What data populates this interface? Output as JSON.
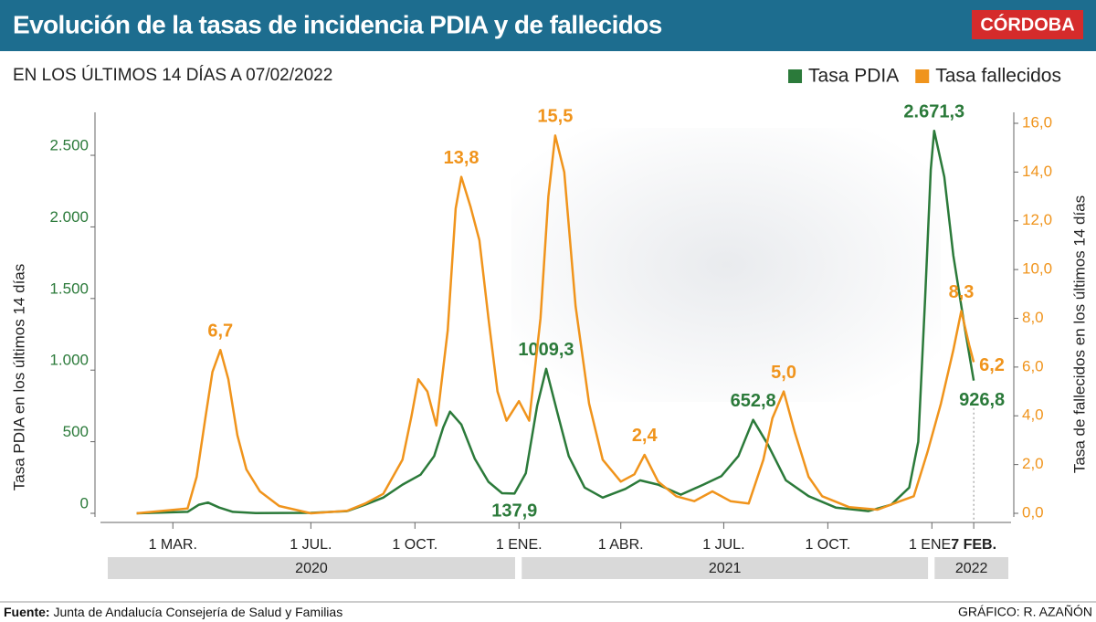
{
  "chart_data": {
    "type": "line",
    "title": "Evolución de la tasas de incidencia PDIA y de fallecidos",
    "logo": "CÓRDOBA",
    "subtitle": "EN LOS ÚLTIMOS 14 DÍAS A 07/02/2022",
    "ylabel": "Tasa PDIA en los últimos 14 días",
    "y2label": "Tasa de fallecidos en los últimos 14 días",
    "xlim": [
      "2019-12-28",
      "2022-03-12"
    ],
    "ylim": [
      0,
      2800
    ],
    "y2lim": [
      0,
      16.45
    ],
    "yticks": [
      0,
      500,
      {
        "value": 1000,
        "label": "1.000"
      },
      {
        "value": 1500,
        "label": "1.500"
      },
      {
        "value": 2000,
        "label": "2.000"
      },
      {
        "value": 2500,
        "label": "2.500"
      }
    ],
    "y2ticks": [
      {
        "value": 0,
        "label": "0,0"
      },
      {
        "value": 2,
        "label": "2,0"
      },
      {
        "value": 4,
        "label": "4,0"
      },
      {
        "value": 6,
        "label": "6,0"
      },
      {
        "value": 8,
        "label": "8,0"
      },
      {
        "value": 10,
        "label": "10,0"
      },
      {
        "value": 12,
        "label": "12,0"
      },
      {
        "value": 14,
        "label": "14,0"
      },
      {
        "value": 16,
        "label": "16,0"
      }
    ],
    "xticks": [
      {
        "value": "2020-03-01",
        "label": "1 MAR."
      },
      {
        "value": "2020-07-01",
        "label": "1 JUL."
      },
      {
        "value": "2020-10-01",
        "label": "1 OCT."
      },
      {
        "value": "2021-01-01",
        "label": "1 ENE."
      },
      {
        "value": "2021-04-01",
        "label": "1 ABR."
      },
      {
        "value": "2021-07-01",
        "label": "1 JUL."
      },
      {
        "value": "2021-10-01",
        "label": "1 OCT."
      },
      {
        "value": "2022-01-01",
        "label": "1 ENE."
      },
      {
        "value": "2022-02-07",
        "label": "7 FEB."
      }
    ],
    "year_bands": [
      "2020",
      "2021",
      "2022"
    ],
    "grid": false,
    "legend": "top-right",
    "series": [
      {
        "name": "Tasa PDIA",
        "color": "#2b7a3a",
        "axis": "y",
        "x": [
          "2020-01-29",
          "2020-03-14",
          "2020-03-24",
          "2020-04-01",
          "2020-04-11",
          "2020-04-23",
          "2020-05-13",
          "2020-07-01",
          "2020-08-02",
          "2020-08-18",
          "2020-09-03",
          "2020-09-20",
          "2020-10-06",
          "2020-10-18",
          "2020-10-26",
          "2020-11-01",
          "2020-11-11",
          "2020-11-23",
          "2020-12-05",
          "2020-12-17",
          "2020-12-28",
          "2021-01-07",
          "2021-01-17",
          "2021-01-25",
          "2021-02-04",
          "2021-02-14",
          "2021-02-28",
          "2021-03-16",
          "2021-04-05",
          "2021-04-18",
          "2021-05-04",
          "2021-05-24",
          "2021-06-13",
          "2021-06-29",
          "2021-07-14",
          "2021-07-27",
          "2021-08-09",
          "2021-08-25",
          "2021-09-14",
          "2021-10-08",
          "2021-11-06",
          "2021-11-26",
          "2021-12-12",
          "2021-12-20",
          "2021-12-26",
          "2021-12-31",
          "2022-01-03",
          "2022-01-12",
          "2022-01-20",
          "2022-01-30",
          "2022-02-07"
        ],
        "values": [
          0,
          10,
          60,
          75,
          40,
          10,
          2,
          3,
          15,
          60,
          110,
          200,
          270,
          400,
          600,
          710,
          620,
          380,
          220,
          140,
          137.9,
          280,
          750,
          1009.3,
          700,
          400,
          180,
          110,
          170,
          230,
          200,
          130,
          200,
          260,
          400,
          652.8,
          480,
          230,
          120,
          40,
          15,
          60,
          180,
          500,
          1500,
          2400,
          2671.3,
          2350,
          1800,
          1300,
          926.8
        ],
        "value_labels": [
          null,
          null,
          null,
          null,
          null,
          null,
          null,
          null,
          null,
          null,
          null,
          null,
          null,
          null,
          null,
          null,
          null,
          null,
          null,
          null,
          "137,9",
          null,
          null,
          "1009,3",
          null,
          null,
          null,
          null,
          null,
          null,
          null,
          null,
          null,
          null,
          null,
          "652,8",
          null,
          null,
          null,
          null,
          null,
          null,
          null,
          null,
          null,
          null,
          "2.671,3",
          null,
          null,
          null,
          "926,8"
        ]
      },
      {
        "name": "Tasa fallecidos",
        "color": "#f0941c",
        "axis": "y2",
        "x": [
          "2020-01-29",
          "2020-03-14",
          "2020-03-22",
          "2020-03-30",
          "2020-04-05",
          "2020-04-12",
          "2020-04-19",
          "2020-04-27",
          "2020-05-05",
          "2020-05-17",
          "2020-06-03",
          "2020-07-01",
          "2020-08-02",
          "2020-08-18",
          "2020-09-03",
          "2020-09-20",
          "2020-09-28",
          "2020-10-04",
          "2020-10-12",
          "2020-10-20",
          "2020-10-30",
          "2020-11-06",
          "2020-11-11",
          "2020-11-19",
          "2020-11-27",
          "2020-12-05",
          "2020-12-13",
          "2020-12-21",
          "2021-01-01",
          "2021-01-10",
          "2021-01-20",
          "2021-01-27",
          "2021-02-02",
          "2021-02-10",
          "2021-02-20",
          "2021-03-04",
          "2021-03-16",
          "2021-04-01",
          "2021-04-13",
          "2021-04-22",
          "2021-05-04",
          "2021-05-20",
          "2021-06-05",
          "2021-06-21",
          "2021-07-07",
          "2021-07-23",
          "2021-08-05",
          "2021-08-13",
          "2021-08-23",
          "2021-09-02",
          "2021-09-14",
          "2021-09-26",
          "2021-10-20",
          "2021-11-14",
          "2021-12-04",
          "2021-12-16",
          "2021-12-28",
          "2022-01-09",
          "2022-01-20",
          "2022-01-27",
          "2022-02-03",
          "2022-02-07"
        ],
        "values": [
          0,
          0.2,
          1.5,
          4.0,
          5.8,
          6.7,
          5.5,
          3.2,
          1.8,
          0.9,
          0.3,
          0,
          0.1,
          0.4,
          0.8,
          2.2,
          4.0,
          5.5,
          5.0,
          3.6,
          7.5,
          12.5,
          13.8,
          12.6,
          11.2,
          8.0,
          5.0,
          3.8,
          4.6,
          3.8,
          8.0,
          13.0,
          15.5,
          14.0,
          8.5,
          4.5,
          2.2,
          1.3,
          1.6,
          2.4,
          1.3,
          0.7,
          0.5,
          0.9,
          0.5,
          0.4,
          2.2,
          3.9,
          5.0,
          3.3,
          1.5,
          0.7,
          0.25,
          0.15,
          0.5,
          0.7,
          2.5,
          4.5,
          6.7,
          8.3,
          6.9,
          6.2
        ],
        "value_labels": [
          null,
          null,
          null,
          null,
          null,
          "6,7",
          null,
          null,
          null,
          null,
          null,
          null,
          null,
          null,
          null,
          null,
          null,
          null,
          null,
          null,
          null,
          null,
          "13,8",
          null,
          null,
          null,
          null,
          null,
          null,
          null,
          null,
          null,
          "15,5",
          null,
          null,
          null,
          null,
          null,
          null,
          "2,4",
          null,
          null,
          null,
          null,
          null,
          null,
          null,
          null,
          "5,0",
          null,
          null,
          null,
          null,
          null,
          null,
          null,
          null,
          null,
          null,
          "8,3",
          null,
          "6,2"
        ]
      }
    ],
    "source_label": "Fuente:",
    "source": "Junta de Andalucía Consejería de Salud y Familias",
    "credit": "GRÁFICO: R. AZAÑÓN"
  }
}
